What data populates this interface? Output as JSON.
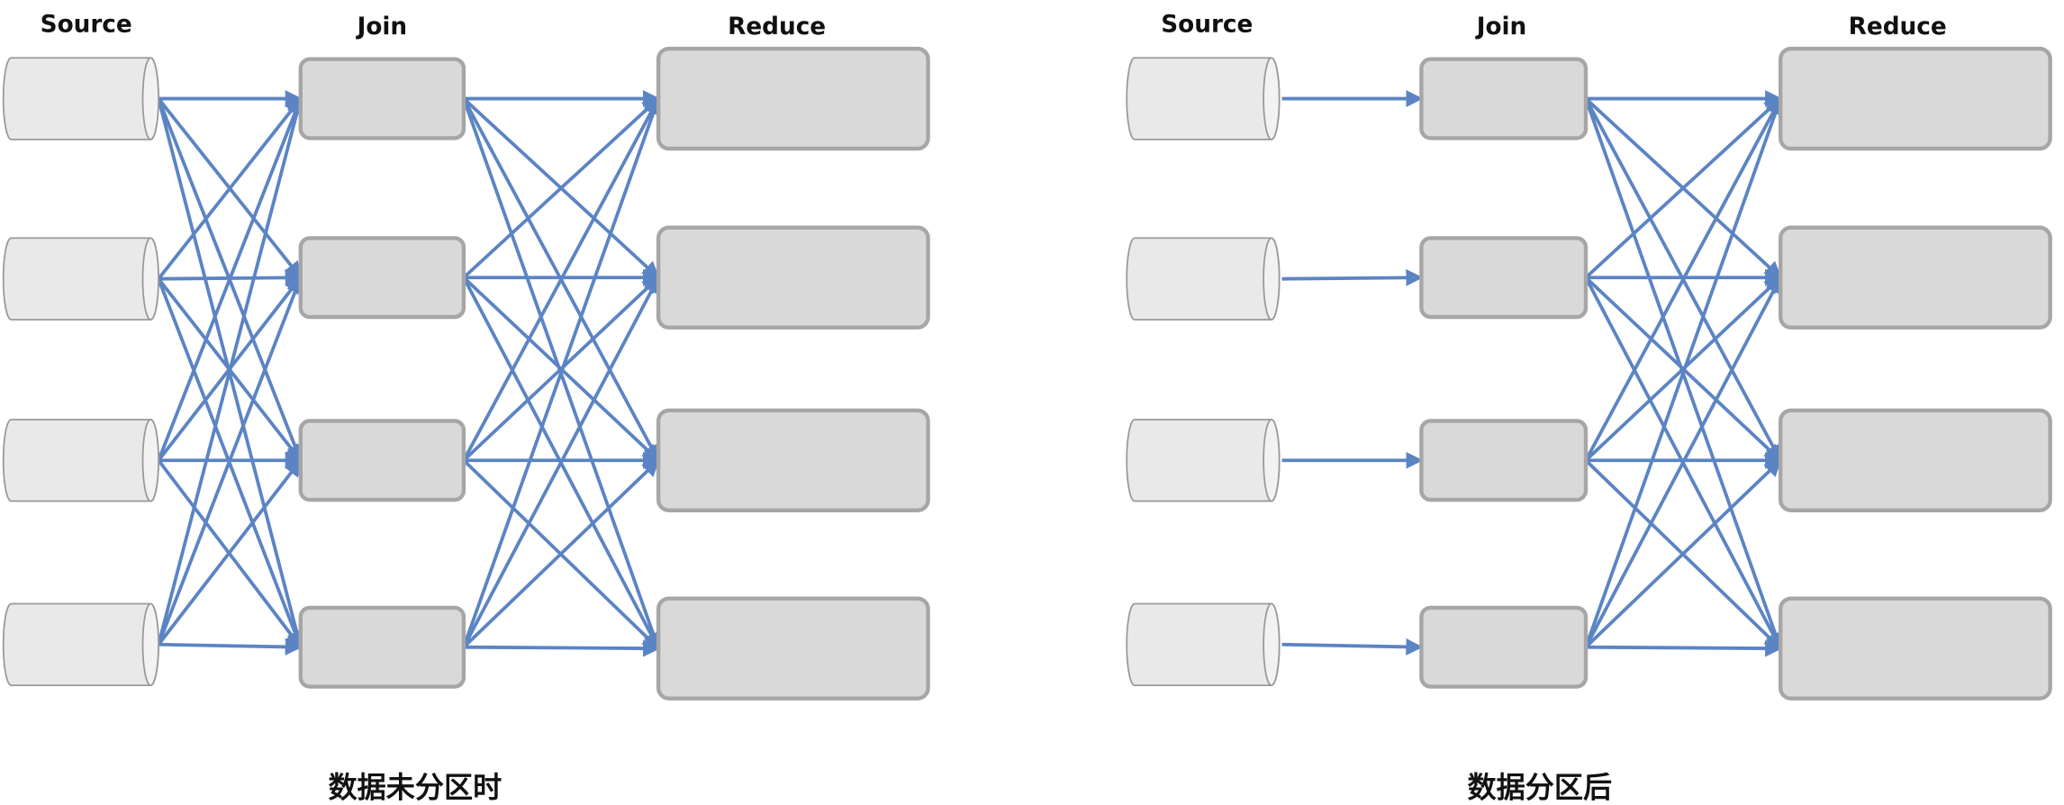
{
  "panels": [
    {
      "headers": {
        "source": "Source",
        "join": "Join",
        "reduce": "Reduce"
      },
      "caption": "数据未分区时"
    },
    {
      "headers": {
        "source": "Source",
        "join": "Join",
        "reduce": "Reduce"
      },
      "caption": "数据分区后"
    }
  ]
}
